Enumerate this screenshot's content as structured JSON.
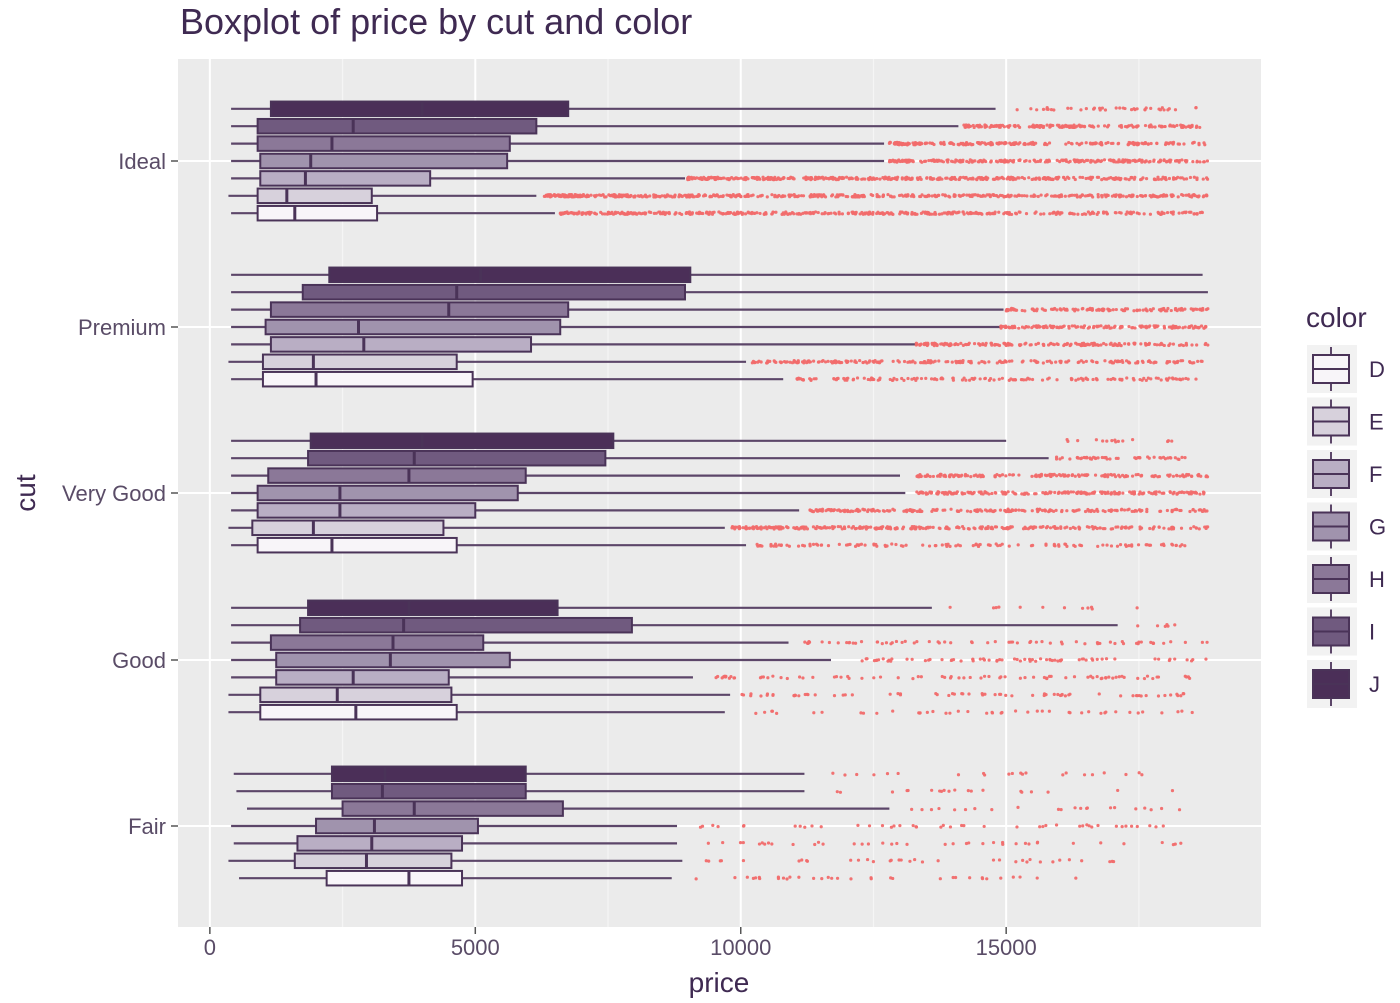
{
  "colors": {
    "panel": "#ebebeb",
    "grid_major": "#ffffff",
    "grid_minor": "#f5f5f5",
    "whisker": "#5c4669",
    "box_stroke": "#4a3358",
    "outlier": "#f16b6b",
    "text": "#3f2a52"
  },
  "chart_data": {
    "type": "boxplot",
    "title": "Boxplot of price by cut and color",
    "xlabel": "price",
    "ylabel": "cut",
    "xlim": [
      -600,
      19800
    ],
    "xticks": [
      0,
      5000,
      10000,
      15000
    ],
    "grid": true,
    "legend": {
      "title": "color",
      "placement": "right",
      "items": [
        {
          "label": "D",
          "fill": "#f8f5f9"
        },
        {
          "label": "E",
          "fill": "#d7d1dc"
        },
        {
          "label": "F",
          "fill": "#b9aec4"
        },
        {
          "label": "G",
          "fill": "#a093ad"
        },
        {
          "label": "H",
          "fill": "#8b7898"
        },
        {
          "label": "I",
          "fill": "#705a7f"
        },
        {
          "label": "J",
          "fill": "#4b2f58"
        }
      ]
    },
    "categories": [
      "Fair",
      "Good",
      "Very Good",
      "Premium",
      "Ideal"
    ],
    "boxes": [
      {
        "cut": "Fair",
        "color": "D",
        "whisker_low": 550,
        "q1": 2200,
        "median": 3750,
        "q3": 4750,
        "whisker_high": 8700,
        "outlier_min": 9100,
        "outlier_max": 16400,
        "outlier_count": 35
      },
      {
        "cut": "Fair",
        "color": "E",
        "whisker_low": 350,
        "q1": 1600,
        "median": 2950,
        "q3": 4550,
        "whisker_high": 8900,
        "outlier_min": 9200,
        "outlier_max": 17100,
        "outlier_count": 35
      },
      {
        "cut": "Fair",
        "color": "F",
        "whisker_low": 450,
        "q1": 1650,
        "median": 3050,
        "q3": 4750,
        "whisker_high": 8800,
        "outlier_min": 9200,
        "outlier_max": 18400,
        "outlier_count": 40
      },
      {
        "cut": "Fair",
        "color": "G",
        "whisker_low": 400,
        "q1": 2000,
        "median": 3100,
        "q3": 5050,
        "whisker_high": 8800,
        "outlier_min": 9200,
        "outlier_max": 18600,
        "outlier_count": 45
      },
      {
        "cut": "Fair",
        "color": "H",
        "whisker_low": 700,
        "q1": 2500,
        "median": 3850,
        "q3": 6650,
        "whisker_high": 12800,
        "outlier_min": 13100,
        "outlier_max": 18600,
        "outlier_count": 22
      },
      {
        "cut": "Fair",
        "color": "I",
        "whisker_low": 500,
        "q1": 2300,
        "median": 3250,
        "q3": 5950,
        "whisker_high": 11200,
        "outlier_min": 11500,
        "outlier_max": 18500,
        "outlier_count": 20
      },
      {
        "cut": "Fair",
        "color": "J",
        "whisker_low": 450,
        "q1": 2300,
        "median": 3300,
        "q3": 5950,
        "whisker_high": 11200,
        "outlier_min": 11500,
        "outlier_max": 18600,
        "outlier_count": 22
      },
      {
        "cut": "Good",
        "color": "D",
        "whisker_low": 350,
        "q1": 950,
        "median": 2750,
        "q3": 4650,
        "whisker_high": 9700,
        "outlier_min": 10000,
        "outlier_max": 18600,
        "outlier_count": 45
      },
      {
        "cut": "Good",
        "color": "E",
        "whisker_low": 350,
        "q1": 950,
        "median": 2400,
        "q3": 4550,
        "whisker_high": 9800,
        "outlier_min": 10000,
        "outlier_max": 18600,
        "outlier_count": 70
      },
      {
        "cut": "Good",
        "color": "F",
        "whisker_low": 400,
        "q1": 1250,
        "median": 2700,
        "q3": 4500,
        "whisker_high": 9100,
        "outlier_min": 9300,
        "outlier_max": 18700,
        "outlier_count": 80
      },
      {
        "cut": "Good",
        "color": "G",
        "whisker_low": 400,
        "q1": 1250,
        "median": 3400,
        "q3": 5650,
        "whisker_high": 11700,
        "outlier_min": 12000,
        "outlier_max": 18800,
        "outlier_count": 70
      },
      {
        "cut": "Good",
        "color": "H",
        "whisker_low": 400,
        "q1": 1150,
        "median": 3450,
        "q3": 5150,
        "whisker_high": 10900,
        "outlier_min": 11200,
        "outlier_max": 18800,
        "outlier_count": 70
      },
      {
        "cut": "Good",
        "color": "I",
        "whisker_low": 400,
        "q1": 1700,
        "median": 3650,
        "q3": 7950,
        "whisker_high": 17100,
        "outlier_min": 17300,
        "outlier_max": 18500,
        "outlier_count": 6
      },
      {
        "cut": "Good",
        "color": "J",
        "whisker_low": 400,
        "q1": 1850,
        "median": 3750,
        "q3": 6550,
        "whisker_high": 13600,
        "outlier_min": 13900,
        "outlier_max": 18400,
        "outlier_count": 12
      },
      {
        "cut": "Very Good",
        "color": "D",
        "whisker_low": 400,
        "q1": 900,
        "median": 2300,
        "q3": 4650,
        "whisker_high": 10100,
        "outlier_min": 10300,
        "outlier_max": 18400,
        "outlier_count": 120
      },
      {
        "cut": "Very Good",
        "color": "E",
        "whisker_low": 350,
        "q1": 800,
        "median": 1950,
        "q3": 4400,
        "whisker_high": 9700,
        "outlier_min": 9800,
        "outlier_max": 18800,
        "outlier_count": 280
      },
      {
        "cut": "Very Good",
        "color": "F",
        "whisker_low": 400,
        "q1": 900,
        "median": 2450,
        "q3": 5000,
        "whisker_high": 11100,
        "outlier_min": 11300,
        "outlier_max": 18800,
        "outlier_count": 220
      },
      {
        "cut": "Very Good",
        "color": "G",
        "whisker_low": 400,
        "q1": 900,
        "median": 2450,
        "q3": 5800,
        "whisker_high": 13100,
        "outlier_min": 13300,
        "outlier_max": 18800,
        "outlier_count": 190
      },
      {
        "cut": "Very Good",
        "color": "H",
        "whisker_low": 400,
        "q1": 1100,
        "median": 3750,
        "q3": 5950,
        "whisker_high": 13000,
        "outlier_min": 13300,
        "outlier_max": 18800,
        "outlier_count": 160
      },
      {
        "cut": "Very Good",
        "color": "I",
        "whisker_low": 400,
        "q1": 1850,
        "median": 3850,
        "q3": 7450,
        "whisker_high": 15800,
        "outlier_min": 15900,
        "outlier_max": 18500,
        "outlier_count": 50
      },
      {
        "cut": "Very Good",
        "color": "J",
        "whisker_low": 400,
        "q1": 1900,
        "median": 4000,
        "q3": 7600,
        "whisker_high": 15000,
        "outlier_min": 16000,
        "outlier_max": 18200,
        "outlier_count": 15
      },
      {
        "cut": "Premium",
        "color": "D",
        "whisker_low": 400,
        "q1": 1000,
        "median": 2000,
        "q3": 4950,
        "whisker_high": 10800,
        "outlier_min": 11000,
        "outlier_max": 18600,
        "outlier_count": 150
      },
      {
        "cut": "Premium",
        "color": "E",
        "whisker_low": 350,
        "q1": 1000,
        "median": 1950,
        "q3": 4650,
        "whisker_high": 10100,
        "outlier_min": 10200,
        "outlier_max": 18700,
        "outlier_count": 220
      },
      {
        "cut": "Premium",
        "color": "F",
        "whisker_low": 400,
        "q1": 1150,
        "median": 2900,
        "q3": 6050,
        "whisker_high": 13300,
        "outlier_min": 13300,
        "outlier_max": 18800,
        "outlier_count": 180
      },
      {
        "cut": "Premium",
        "color": "G",
        "whisker_low": 400,
        "q1": 1050,
        "median": 2800,
        "q3": 6600,
        "whisker_high": 14900,
        "outlier_min": 14900,
        "outlier_max": 18800,
        "outlier_count": 140
      },
      {
        "cut": "Premium",
        "color": "H",
        "whisker_low": 400,
        "q1": 1150,
        "median": 4500,
        "q3": 6750,
        "whisker_high": 14950,
        "outlier_min": 15000,
        "outlier_max": 18800,
        "outlier_count": 120
      },
      {
        "cut": "Premium",
        "color": "I",
        "whisker_low": 400,
        "q1": 1750,
        "median": 4650,
        "q3": 8950,
        "whisker_high": 18800,
        "outlier_min": null,
        "outlier_max": null,
        "outlier_count": 0
      },
      {
        "cut": "Premium",
        "color": "J",
        "whisker_low": 400,
        "q1": 2250,
        "median": 5100,
        "q3": 9050,
        "whisker_high": 18700,
        "outlier_min": null,
        "outlier_max": null,
        "outlier_count": 0
      },
      {
        "cut": "Ideal",
        "color": "D",
        "whisker_low": 400,
        "q1": 900,
        "median": 1600,
        "q3": 3150,
        "whisker_high": 6500,
        "outlier_min": 6600,
        "outlier_max": 18700,
        "outlier_count": 420
      },
      {
        "cut": "Ideal",
        "color": "E",
        "whisker_low": 350,
        "q1": 900,
        "median": 1450,
        "q3": 3050,
        "whisker_high": 6150,
        "outlier_min": 6300,
        "outlier_max": 18800,
        "outlier_count": 520
      },
      {
        "cut": "Ideal",
        "color": "F",
        "whisker_low": 400,
        "q1": 950,
        "median": 1800,
        "q3": 4150,
        "whisker_high": 8950,
        "outlier_min": 9000,
        "outlier_max": 18800,
        "outlier_count": 420
      },
      {
        "cut": "Ideal",
        "color": "G",
        "whisker_low": 400,
        "q1": 950,
        "median": 1900,
        "q3": 5600,
        "whisker_high": 12700,
        "outlier_min": 12800,
        "outlier_max": 18800,
        "outlier_count": 260
      },
      {
        "cut": "Ideal",
        "color": "H",
        "whisker_low": 400,
        "q1": 900,
        "median": 2300,
        "q3": 5650,
        "whisker_high": 12700,
        "outlier_min": 12800,
        "outlier_max": 18800,
        "outlier_count": 220
      },
      {
        "cut": "Ideal",
        "color": "I",
        "whisker_low": 400,
        "q1": 900,
        "median": 2700,
        "q3": 6150,
        "whisker_high": 14100,
        "outlier_min": 14200,
        "outlier_max": 18800,
        "outlier_count": 170
      },
      {
        "cut": "Ideal",
        "color": "J",
        "whisker_low": 400,
        "q1": 1150,
        "median": 4000,
        "q3": 6750,
        "whisker_high": 14800,
        "outlier_min": 15200,
        "outlier_max": 18600,
        "outlier_count": 40
      }
    ]
  }
}
